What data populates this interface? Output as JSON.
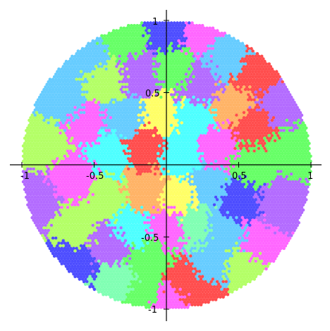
{
  "chart_data": {
    "type": "scatter",
    "title": "",
    "xlabel": "",
    "ylabel": "",
    "xlim": [
      -1.05,
      1.05
    ],
    "ylim": [
      -1.05,
      1.05
    ],
    "grid": false,
    "legend": "none",
    "domain": "unit disk",
    "radius": 1,
    "x_ticks": [
      "-1",
      "-0.5",
      "0.5",
      "1"
    ],
    "y_ticks": [
      "1",
      "0.5",
      "-0.5",
      "-1"
    ],
    "x_tick_values": [
      -1,
      -0.5,
      0.5,
      1
    ],
    "y_tick_values": [
      1,
      0.5,
      -0.5,
      -1
    ],
    "palette": [
      "#ff4d4d",
      "#ff66ff",
      "#b36bff",
      "#4d4dff",
      "#66ccff",
      "#4dffff",
      "#66ff66",
      "#b3ff66",
      "#ffff66",
      "#ffb366",
      "#80ffb3"
    ],
    "clusters": [
      {
        "x": 0.0,
        "y": 0.95,
        "color": "#4d4dff"
      },
      {
        "x": -0.28,
        "y": 0.88,
        "color": "#66ff66"
      },
      {
        "x": 0.25,
        "y": 0.92,
        "color": "#ff66ff"
      },
      {
        "x": -0.55,
        "y": 0.75,
        "color": "#66ccff"
      },
      {
        "x": -0.72,
        "y": 0.45,
        "color": "#66ccff"
      },
      {
        "x": -0.42,
        "y": 0.58,
        "color": "#b3ff66"
      },
      {
        "x": -0.18,
        "y": 0.62,
        "color": "#b36bff"
      },
      {
        "x": 0.05,
        "y": 0.65,
        "color": "#66ff66"
      },
      {
        "x": 0.4,
        "y": 0.75,
        "color": "#66ccff"
      },
      {
        "x": 0.62,
        "y": 0.62,
        "color": "#ff4d4d"
      },
      {
        "x": 0.78,
        "y": 0.42,
        "color": "#b36bff"
      },
      {
        "x": 0.22,
        "y": 0.55,
        "color": "#b36bff"
      },
      {
        "x": -0.85,
        "y": 0.15,
        "color": "#b3ff66"
      },
      {
        "x": -0.55,
        "y": 0.28,
        "color": "#ff66ff"
      },
      {
        "x": -0.28,
        "y": 0.32,
        "color": "#66ccff"
      },
      {
        "x": -0.05,
        "y": 0.35,
        "color": "#ffff66"
      },
      {
        "x": 0.18,
        "y": 0.3,
        "color": "#4dffff"
      },
      {
        "x": 0.45,
        "y": 0.4,
        "color": "#ffb366"
      },
      {
        "x": 0.6,
        "y": 0.25,
        "color": "#ff4d4d"
      },
      {
        "x": 0.85,
        "y": 0.1,
        "color": "#66ff66"
      },
      {
        "x": -0.4,
        "y": 0.1,
        "color": "#4dffff"
      },
      {
        "x": -0.15,
        "y": 0.12,
        "color": "#ff4d4d"
      },
      {
        "x": 0.1,
        "y": 0.05,
        "color": "#4dffff"
      },
      {
        "x": 0.35,
        "y": 0.12,
        "color": "#ff66ff"
      },
      {
        "x": 0.6,
        "y": 0.02,
        "color": "#66ff66"
      },
      {
        "x": -0.88,
        "y": -0.25,
        "color": "#b36bff"
      },
      {
        "x": -0.65,
        "y": -0.1,
        "color": "#ff66ff"
      },
      {
        "x": -0.62,
        "y": -0.42,
        "color": "#b3ff66"
      },
      {
        "x": -0.4,
        "y": -0.25,
        "color": "#b3ff66"
      },
      {
        "x": -0.15,
        "y": -0.18,
        "color": "#ffb366"
      },
      {
        "x": 0.1,
        "y": -0.22,
        "color": "#ffff66"
      },
      {
        "x": 0.28,
        "y": -0.15,
        "color": "#66ccff"
      },
      {
        "x": 0.5,
        "y": -0.25,
        "color": "#4d4dff"
      },
      {
        "x": 0.78,
        "y": -0.28,
        "color": "#b36bff"
      },
      {
        "x": 0.2,
        "y": -0.42,
        "color": "#80ffb3"
      },
      {
        "x": -0.65,
        "y": -0.7,
        "color": "#4d4dff"
      },
      {
        "x": -0.4,
        "y": -0.55,
        "color": "#b36bff"
      },
      {
        "x": -0.25,
        "y": -0.42,
        "color": "#4dffff"
      },
      {
        "x": 0.0,
        "y": -0.45,
        "color": "#ff66ff"
      },
      {
        "x": 0.4,
        "y": -0.48,
        "color": "#66ccff"
      },
      {
        "x": 0.65,
        "y": -0.55,
        "color": "#ff66ff"
      },
      {
        "x": 0.55,
        "y": -0.72,
        "color": "#b3ff66"
      },
      {
        "x": -0.35,
        "y": -0.82,
        "color": "#80ffb3"
      },
      {
        "x": -0.1,
        "y": -0.68,
        "color": "#66ff66"
      },
      {
        "x": 0.12,
        "y": -0.8,
        "color": "#ff4d4d"
      },
      {
        "x": 0.3,
        "y": -0.7,
        "color": "#66ccff"
      },
      {
        "x": 0.0,
        "y": -0.95,
        "color": "#ff66ff"
      },
      {
        "x": -0.15,
        "y": -0.92,
        "color": "#66ff66"
      },
      {
        "x": 0.25,
        "y": -0.9,
        "color": "#ff4d4d"
      }
    ]
  }
}
